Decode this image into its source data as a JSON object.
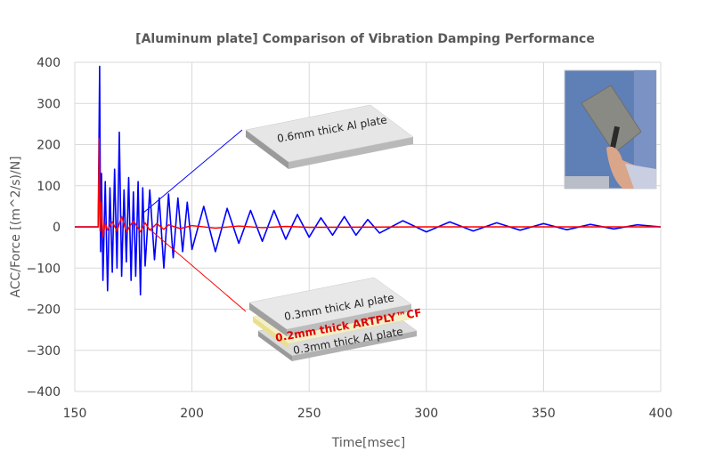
{
  "chart_data": {
    "type": "line",
    "title": "[Aluminum plate]  Comparison of Vibration Damping  Performance",
    "xlabel": "Time[msec]",
    "ylabel": "ACC/Force  [(m^2/s)/N]",
    "xlim": [
      150,
      400
    ],
    "ylim": [
      -400,
      400
    ],
    "xticks": [
      150,
      200,
      250,
      300,
      350,
      400
    ],
    "xtick_labels": [
      "150",
      "200",
      "250",
      "300",
      "350",
      "400"
    ],
    "yticks": [
      400,
      300,
      200,
      100,
      0,
      -100,
      -200,
      -300,
      -400
    ],
    "ytick_labels": [
      "400",
      "300",
      "200",
      "100",
      "0",
      "−100",
      "−200",
      "−300",
      "−400"
    ],
    "grid": true,
    "series": [
      {
        "color": "#0000ff",
        "x": [
          150,
          160,
          160.6,
          161,
          161.4,
          162,
          163,
          164,
          165,
          166,
          167,
          168,
          169,
          170,
          171,
          172,
          173,
          174,
          175,
          176,
          177,
          178,
          179,
          180,
          182,
          184,
          186,
          188,
          190,
          192,
          194,
          196,
          198,
          200,
          205,
          210,
          215,
          220,
          225,
          230,
          235,
          240,
          245,
          250,
          255,
          260,
          265,
          270,
          275,
          280,
          290,
          300,
          310,
          320,
          330,
          340,
          350,
          360,
          370,
          380,
          390,
          400
        ],
        "y": [
          0,
          0,
          390,
          -60,
          130,
          -130,
          110,
          -155,
          95,
          -110,
          140,
          -100,
          230,
          -120,
          90,
          -85,
          120,
          -130,
          85,
          -120,
          110,
          -165,
          95,
          -95,
          90,
          -80,
          70,
          -100,
          80,
          -75,
          70,
          -60,
          60,
          -55,
          50,
          -60,
          45,
          -40,
          40,
          -35,
          40,
          -30,
          30,
          -25,
          22,
          -20,
          25,
          -20,
          18,
          -15,
          15,
          -12,
          12,
          -10,
          10,
          -8,
          8,
          -7,
          6,
          -5,
          5,
          0
        ]
      },
      {
        "color": "#ff0000",
        "x": [
          150,
          160,
          160.4,
          160.8,
          161.2,
          162,
          163,
          164,
          166,
          168,
          170,
          172,
          175,
          178,
          180,
          182,
          185,
          188,
          190,
          195,
          200,
          210,
          220,
          230,
          240,
          250,
          300,
          350,
          400
        ],
        "y": [
          0,
          0,
          215,
          -10,
          60,
          -25,
          10,
          -8,
          12,
          -10,
          25,
          -12,
          15,
          -12,
          10,
          -8,
          8,
          -6,
          5,
          -4,
          3,
          -3,
          2,
          -2,
          1,
          -1,
          0,
          0,
          0
        ]
      }
    ],
    "annotations": [
      {
        "text": "0.6mm thick Al plate"
      },
      {
        "text": "0.3mm thick Al plate"
      },
      {
        "text": "0.2mm thick ARTPLY™CF"
      },
      {
        "text": "0.3mm thick Al plate"
      }
    ]
  },
  "colors": {
    "untreated": "#0000ff",
    "damped": "#ff0000",
    "grid": "#d9d9d9",
    "text": "#595959",
    "annotation_highlight": "#e00000"
  },
  "inset_photo": {
    "description_icon": "photo-hand-holding-aluminum-plate-icon"
  }
}
